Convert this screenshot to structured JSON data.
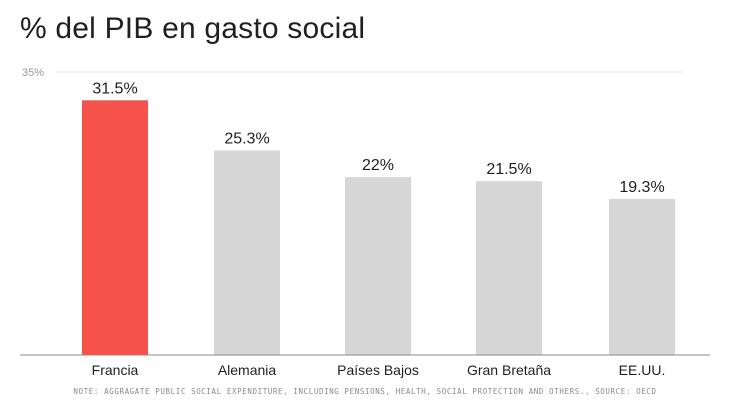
{
  "title": "% del PIB en gasto social",
  "note": "NOTE: AGGRAGATE PUBLIC SOCIAL EXPENDITURE, INCLUDING PENSIONS, HEALTH, SOCIAL PROTECTION AND OTHERS., SOURCE: OECD",
  "colors": {
    "highlight": "#f5524a",
    "bar": "#d6d6d6",
    "gridline": "#dfe6ee",
    "axis": "#8a8a8a"
  },
  "chart_data": {
    "type": "bar",
    "categories": [
      "Francia",
      "Alemania",
      "Países Bajos",
      "Gran Bretaña",
      "EE.UU."
    ],
    "values": [
      31.5,
      25.3,
      22,
      21.5,
      19.3
    ],
    "value_labels": [
      "31.5%",
      "25.3%",
      "22%",
      "21.5%",
      "19.3%"
    ],
    "highlight_index": 0,
    "ylim": [
      0,
      35
    ],
    "y_tick_label": "35%",
    "grid": true
  }
}
